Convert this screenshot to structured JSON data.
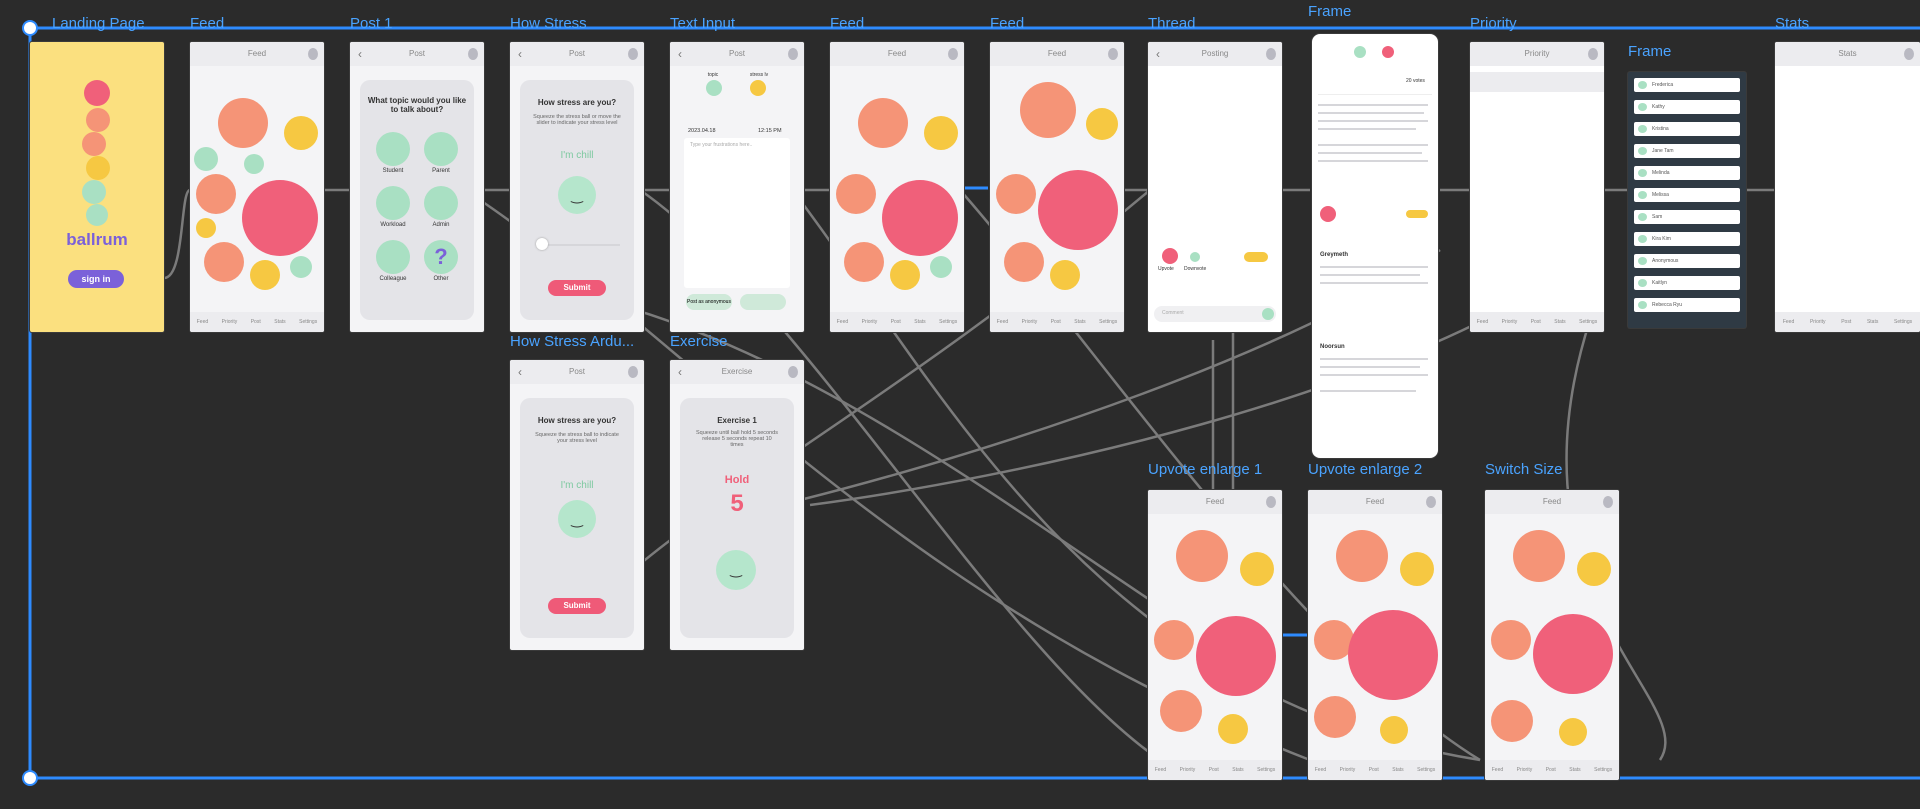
{
  "colors": {
    "canvas": "#2b2b2b",
    "frame_title": "#4aa3ff",
    "accent_pink": "#f0607a",
    "accent_purple": "#7b61d9",
    "bubble_orange": "#f59477",
    "bubble_yellow": "#f6c842",
    "bubble_green": "#a9e0c3"
  },
  "frames": {
    "landing": {
      "title": "Landing Page",
      "brand": "ballrum",
      "signin": "sign in"
    },
    "feed1": {
      "title": "Feed",
      "header": "Feed"
    },
    "post1": {
      "title": "Post 1",
      "header": "Post",
      "question": "What topic would you like to talk about?",
      "topics": [
        "Student",
        "Parent",
        "Workload",
        "Admin",
        "Colleague",
        "Other"
      ]
    },
    "stress": {
      "title": "How Stress",
      "header": "Post",
      "question": "How stress are you?",
      "hint": "Squeeze the stress ball or move the slider to indicate your stress level",
      "status": "I'm chill",
      "submit": "Submit"
    },
    "stress_ard": {
      "title": "How Stress Ardu...",
      "header": "Post",
      "question": "How stress are you?",
      "hint": "Squeeze the stress ball to indicate your stress level",
      "status": "I'm chill",
      "submit": "Submit"
    },
    "textinput": {
      "title": "Text Input",
      "header": "Post",
      "date": "2023.04.18",
      "time": "12:15 PM",
      "tag1": "topic",
      "tag2": "stress lv",
      "placeholder": "Type your frustrations here..",
      "anon": "Post as anonymous"
    },
    "exercise": {
      "title": "Exercise",
      "header": "Exercise",
      "heading": "Exercise 1",
      "instructions": "Squeeze until ball hold 5 seconds release 5 seconds repeat 10 times",
      "hold": "Hold",
      "count": "5"
    },
    "feed2": {
      "title": "Feed",
      "header": "Feed"
    },
    "feed3": {
      "title": "Feed",
      "header": "Feed"
    },
    "thread": {
      "title": "Thread",
      "header": "Posting",
      "upvote": "Upvote",
      "downvote": "Downvote",
      "comment": "Comment"
    },
    "frame_detail": {
      "title": "Frame",
      "votes": "20 votes",
      "author1": "Greymeth",
      "author2": "Noorsun"
    },
    "priority": {
      "title": "Priority",
      "header": "Priority"
    },
    "frame_list": {
      "title": "Frame",
      "names": [
        "Frederica",
        "Kathy",
        "Kristina",
        "Jane Tam",
        "Melinda",
        "Melissa",
        "Sam",
        "Kira Kim",
        "Anonymous",
        "Kaitlyn",
        "Rebecca Ryu"
      ]
    },
    "stats": {
      "title": "Stats",
      "header": "Stats"
    },
    "upvote1": {
      "title": "Upvote enlarge 1",
      "header": "Feed"
    },
    "upvote2": {
      "title": "Upvote enlarge 2",
      "header": "Feed"
    },
    "switchsize": {
      "title": "Switch Size",
      "header": "Feed"
    }
  },
  "navbar": [
    "Feed",
    "Priority",
    "Post",
    "Stats",
    "Settings"
  ]
}
